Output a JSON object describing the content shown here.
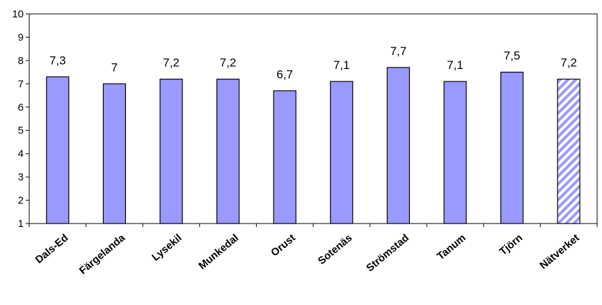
{
  "chart_data": {
    "type": "bar",
    "categories": [
      "Dals-Ed",
      "Färgelanda",
      "Lysekil",
      "Munkedal",
      "Orust",
      "Sotenäs",
      "Strömstad",
      "Tanum",
      "Tjörn",
      "Nätverket"
    ],
    "values": [
      7.3,
      7,
      7.2,
      7.2,
      6.7,
      7.1,
      7.7,
      7.1,
      7.5,
      7.2
    ],
    "value_labels": [
      "7,3",
      "7",
      "7,2",
      "7,2",
      "6,7",
      "7,1",
      "7,7",
      "7,1",
      "7,5",
      "7,2"
    ],
    "yticks": [
      "1",
      "2",
      "3",
      "4",
      "5",
      "6",
      "7",
      "8",
      "9",
      "10"
    ],
    "ylim": [
      1,
      10
    ],
    "title": "",
    "xlabel": "",
    "ylabel": "",
    "grid": false,
    "legend": false,
    "colors": {
      "bar_fill": "#9999ff",
      "bar_stroke": "#000000",
      "highlight_stripe": "#9999ff",
      "highlight_category": "Nätverket"
    }
  }
}
